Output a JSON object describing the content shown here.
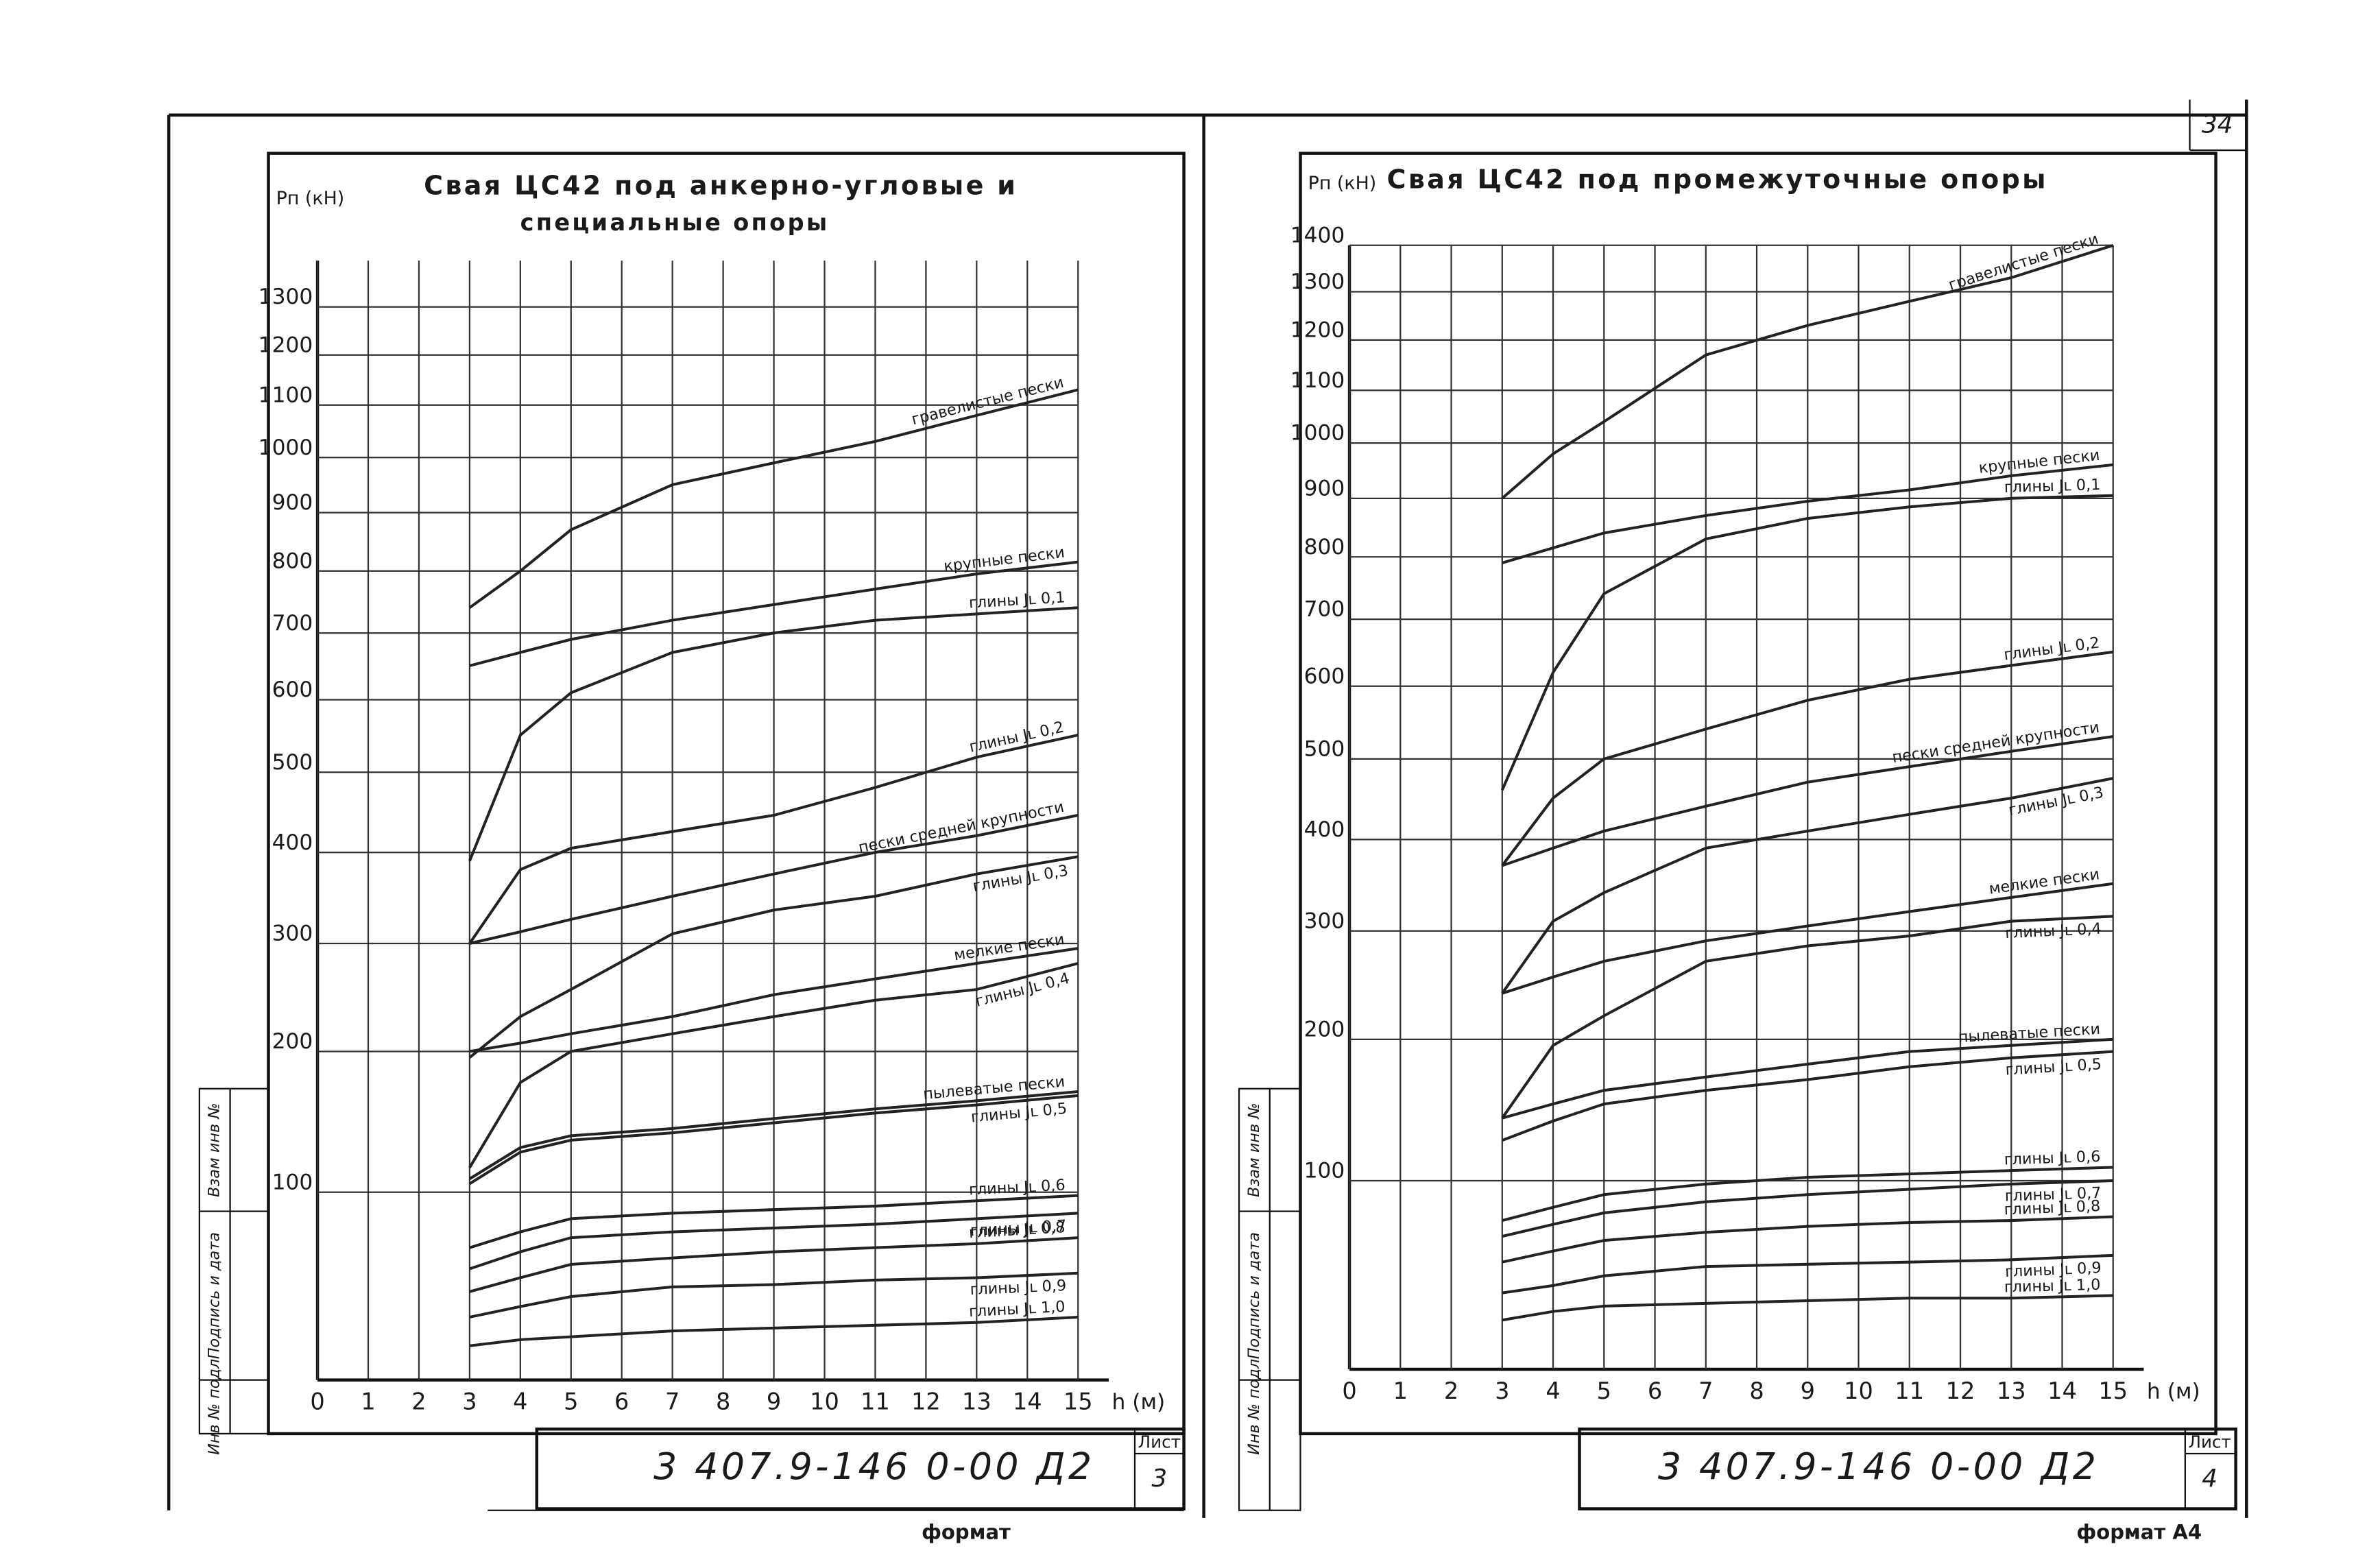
{
  "chart_data": [
    {
      "type": "line",
      "title": "Свая ЦС42 под анкерно-угловые и",
      "subtitle": "специальные опоры",
      "y_label": "Pп (кН)",
      "x_label": "h (м)",
      "yscale": "sqrt",
      "grid": true,
      "color": "#222222",
      "x": [
        3,
        4,
        5,
        7,
        9,
        11,
        13,
        15
      ],
      "xlim": [
        0,
        15
      ],
      "xticks": [
        0,
        1,
        2,
        3,
        4,
        5,
        6,
        7,
        8,
        9,
        10,
        11,
        12,
        13,
        14,
        15
      ],
      "ylim": [
        20,
        1400
      ],
      "yticks": [
        100,
        200,
        300,
        400,
        500,
        600,
        700,
        800,
        900,
        1000,
        1100,
        1200,
        1300
      ],
      "series": [
        {
          "name": "гравелистые пески",
          "values": [
            740,
            800,
            870,
            950,
            990,
            1030,
            1080,
            1130
          ]
        },
        {
          "name": "крупные пески",
          "values": [
            650,
            670,
            690,
            720,
            745,
            770,
            795,
            815
          ]
        },
        {
          "name": "глины Jʟ 0,1",
          "values": [
            390,
            550,
            610,
            670,
            700,
            720,
            730,
            740
          ]
        },
        {
          "name": "глины Jʟ 0,2",
          "values": [
            300,
            380,
            405,
            425,
            445,
            480,
            520,
            550
          ]
        },
        {
          "name": "пески средней крупности",
          "values": [
            300,
            312,
            325,
            350,
            375,
            400,
            420,
            445
          ]
        },
        {
          "name": "глины Jʟ 0,3",
          "values": [
            195,
            230,
            255,
            310,
            335,
            350,
            375,
            395
          ]
        },
        {
          "name": "мелкие пески",
          "values": [
            200,
            207,
            215,
            230,
            250,
            265,
            280,
            295
          ]
        },
        {
          "name": "глины Jʟ 0,4",
          "values": [
            115,
            175,
            200,
            215,
            230,
            245,
            255,
            280
          ]
        },
        {
          "name": "пылеватые пески",
          "values": [
            108,
            128,
            136,
            141,
            148,
            155,
            161,
            168
          ]
        },
        {
          "name": "глины Jʟ 0,5",
          "values": [
            105,
            125,
            133,
            138,
            145,
            152,
            158,
            165
          ]
        },
        {
          "name": "глины Jʟ 0,6",
          "values": [
            70,
            78,
            85,
            88,
            90,
            92,
            95,
            98
          ]
        },
        {
          "name": "глины Jʟ 0,7",
          "values": [
            60,
            68,
            75,
            78,
            80,
            82,
            85,
            88
          ]
        },
        {
          "name": "глины Jʟ 0,8",
          "values": [
            50,
            56,
            62,
            65,
            68,
            70,
            72,
            75
          ]
        },
        {
          "name": "глины Jʟ 0,9",
          "values": [
            40,
            44,
            48,
            52,
            53,
            55,
            56,
            58
          ]
        },
        {
          "name": "глины Jʟ 1,0",
          "values": [
            30,
            32,
            33,
            35,
            36,
            37,
            38,
            40
          ]
        }
      ]
    },
    {
      "type": "line",
      "title": "Свая ЦС42 под промежуточные опоры",
      "y_label": "Pп (кН)",
      "x_label": "h (м)",
      "yscale": "sqrt",
      "grid": true,
      "color": "#222222",
      "x": [
        3,
        4,
        5,
        7,
        9,
        11,
        13,
        15
      ],
      "xlim": [
        0,
        15
      ],
      "xticks": [
        0,
        1,
        2,
        3,
        4,
        5,
        6,
        7,
        8,
        9,
        10,
        11,
        12,
        13,
        14,
        15
      ],
      "ylim": [
        20,
        1400
      ],
      "yticks": [
        100,
        200,
        300,
        400,
        500,
        600,
        700,
        800,
        900,
        1000,
        1100,
        1200,
        1300,
        1400
      ],
      "series": [
        {
          "name": "гравелистые пески",
          "values": [
            900,
            980,
            1040,
            1170,
            1230,
            1280,
            1330,
            1400
          ]
        },
        {
          "name": "крупные пески",
          "values": [
            790,
            815,
            840,
            870,
            895,
            915,
            940,
            960
          ]
        },
        {
          "name": "глины Jʟ 0,1",
          "values": [
            460,
            620,
            740,
            830,
            865,
            885,
            900,
            905
          ]
        },
        {
          "name": "глины Jʟ 0,2",
          "values": [
            370,
            450,
            500,
            540,
            580,
            610,
            630,
            650
          ]
        },
        {
          "name": "пески средней крупности",
          "values": [
            370,
            390,
            410,
            440,
            470,
            490,
            510,
            530
          ]
        },
        {
          "name": "глины Jʟ 0,3",
          "values": [
            240,
            310,
            340,
            390,
            410,
            430,
            450,
            475
          ]
        },
        {
          "name": "мелкие пески",
          "values": [
            240,
            255,
            270,
            290,
            305,
            320,
            335,
            350
          ]
        },
        {
          "name": "глины Jʟ 0,4",
          "values": [
            140,
            195,
            220,
            270,
            285,
            295,
            310,
            315
          ]
        },
        {
          "name": "пылеватые пески",
          "values": [
            140,
            150,
            160,
            170,
            180,
            190,
            195,
            200
          ]
        },
        {
          "name": "глины Jʟ 0,5",
          "values": [
            125,
            138,
            150,
            160,
            168,
            178,
            185,
            190
          ]
        },
        {
          "name": "глины Jʟ 0,6",
          "values": [
            78,
            85,
            92,
            98,
            102,
            104,
            106,
            108
          ]
        },
        {
          "name": "глины Jʟ 0,7",
          "values": [
            70,
            76,
            82,
            88,
            92,
            95,
            98,
            100
          ]
        },
        {
          "name": "глины Jʟ 0,8",
          "values": [
            58,
            63,
            68,
            72,
            75,
            77,
            78,
            80
          ]
        },
        {
          "name": "глины Jʟ 0,9",
          "values": [
            45,
            48,
            52,
            56,
            57,
            58,
            59,
            61
          ]
        },
        {
          "name": "глины Jʟ 1,0",
          "values": [
            35,
            38,
            40,
            41,
            42,
            43,
            43,
            44
          ]
        }
      ]
    }
  ],
  "frames": [
    {
      "code": "3 407.9-146 0-00 Д2",
      "sheet_label": "Лист",
      "sheet": "3",
      "format": "формат",
      "side_labels": [
        "Взам инв №",
        "Подпись и дата",
        "Инв № подл"
      ]
    },
    {
      "code": "3 407.9-146 0-00 Д2",
      "sheet_label": "Лист",
      "sheet": "4",
      "format": "формат А4",
      "side_labels": [
        "Взам инв №",
        "Подпись и дата",
        "Инв № подл"
      ]
    }
  ],
  "page_number": "34"
}
